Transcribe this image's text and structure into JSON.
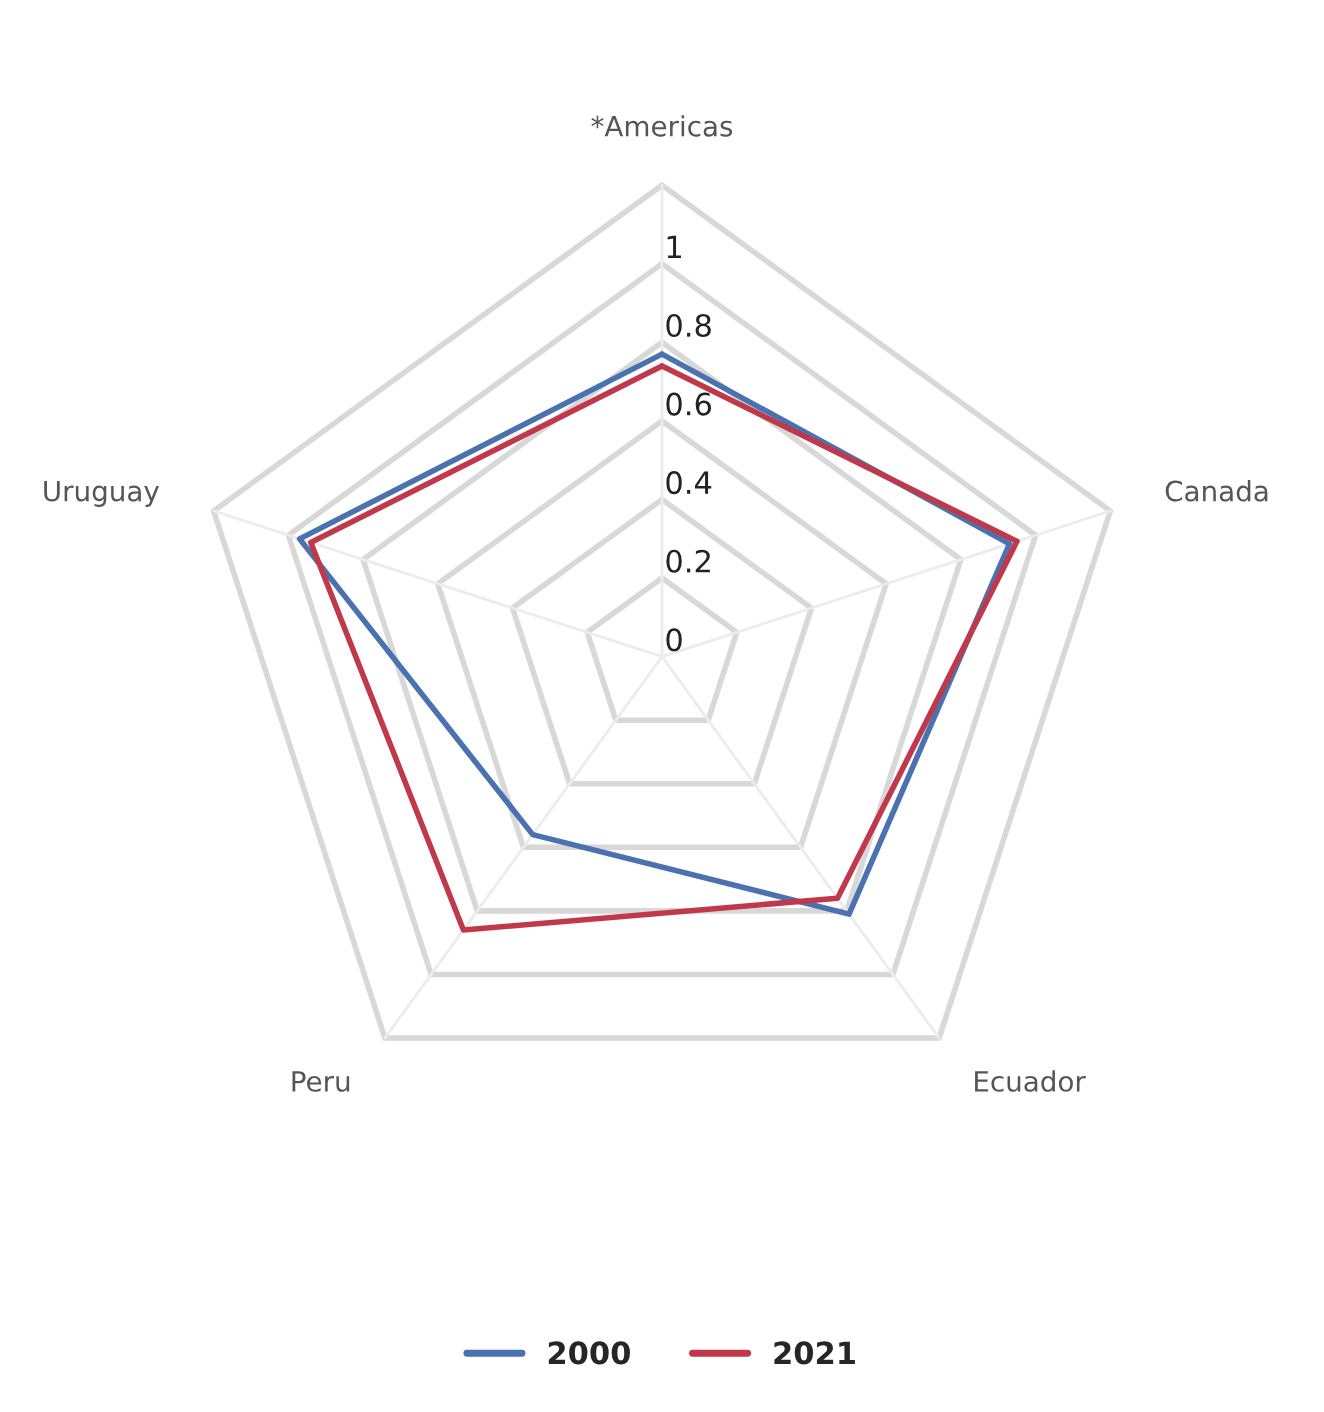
{
  "chart_data": {
    "type": "radar",
    "categories": [
      "*Americas",
      "Canada",
      "Ecuador",
      "Peru",
      "Uruguay"
    ],
    "series": [
      {
        "name": "2000",
        "color": "#4a72b0",
        "values": [
          0.77,
          0.93,
          0.81,
          0.56,
          0.97
        ]
      },
      {
        "name": "2021",
        "color": "#c0394b",
        "values": [
          0.74,
          0.95,
          0.76,
          0.86,
          0.94
        ]
      }
    ],
    "ylim": [
      0,
      1.2
    ],
    "yticks": [
      0,
      0.2,
      0.4,
      0.6,
      0.8,
      1
    ],
    "legend": "bottom",
    "grid": true,
    "marker": "none",
    "line_style": "solid"
  }
}
